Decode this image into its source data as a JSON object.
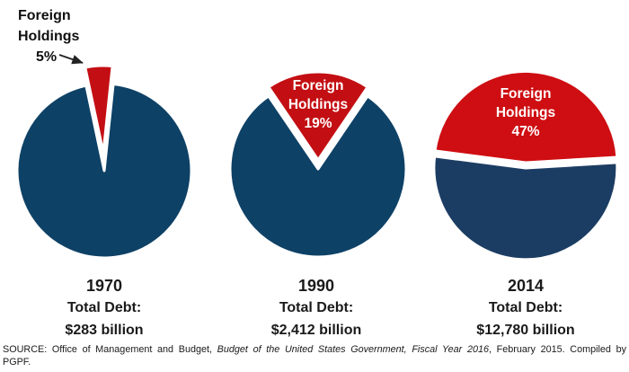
{
  "chart_data": {
    "type": "pie",
    "title": "",
    "legend": "none",
    "pies": [
      {
        "year": "1970",
        "debt_label": "Total Debt:",
        "debt_value": "$283 billion",
        "callout_lines": [
          "Foreign",
          "Holdings",
          "5%"
        ],
        "label_position": "outside-with-arrow",
        "slices": [
          {
            "label": "Foreign Holdings",
            "pct": 5,
            "color": "#C30F13"
          },
          {
            "label": "",
            "pct": 95,
            "color": "#0E4166"
          }
        ]
      },
      {
        "year": "1990",
        "debt_label": "Total Debt:",
        "debt_value": "$2,412 billion",
        "callout_lines": [
          "Foreign",
          "Holdings",
          "19%"
        ],
        "label_position": "inside",
        "slices": [
          {
            "label": "Foreign Holdings",
            "pct": 19,
            "color": "#C30F13"
          },
          {
            "label": "",
            "pct": 81,
            "color": "#0E4166"
          }
        ]
      },
      {
        "year": "2014",
        "debt_label": "Total Debt:",
        "debt_value": "$12,780 billion",
        "callout_lines": [
          "Foreign",
          "Holdings",
          "47%"
        ],
        "label_position": "inside",
        "slices": [
          {
            "label": "Foreign Holdings",
            "pct": 47,
            "color": "#CE0E12"
          },
          {
            "label": "",
            "pct": 53,
            "color": "#1C3D63"
          }
        ]
      }
    ]
  },
  "colors": {
    "foreign_red": "#C30F13",
    "domestic_navy": "#0E4166",
    "domestic_navy_2014": "#1C3D63",
    "inside_label_text": "#FFFFFF",
    "background": "#FFFFFF"
  },
  "source": {
    "prefix": "SOURCE:  Office of Management and Budget, ",
    "italic": "Budget of the United States Government, Fiscal Year 2016",
    "suffix": ", February 2015. Compiled by",
    "line2": "PGPF."
  }
}
